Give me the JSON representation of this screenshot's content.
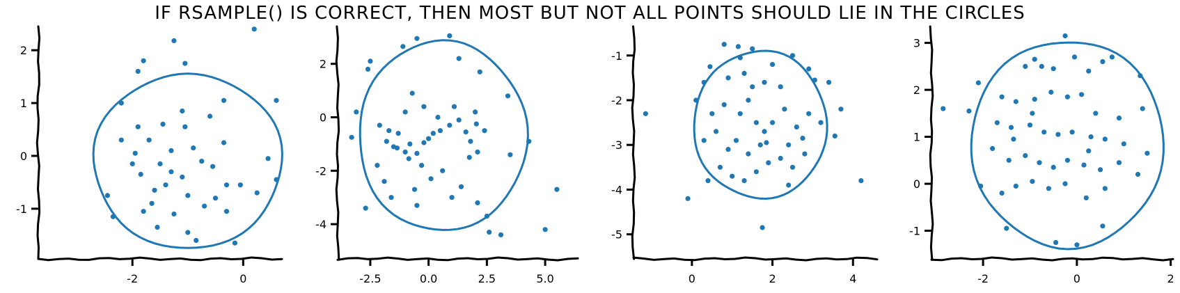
{
  "title": "IF RSAMPLE() IS CORRECT, THEN MOST BUT NOT ALL POINTS SHOULD LIE IN THE CIRCLES",
  "colors": {
    "points": "#1f77b4",
    "circle": "#1f77b4",
    "axes": "#000000"
  },
  "chart_data": [
    {
      "type": "scatter",
      "title": "",
      "xlabel": "",
      "ylabel": "",
      "xlim": [
        -3.7,
        0.7
      ],
      "ylim": [
        -1.95,
        2.45
      ],
      "xticks": [
        {
          "v": -2,
          "label": "-2"
        },
        {
          "v": 0,
          "label": "0"
        }
      ],
      "yticks": [
        {
          "v": -1,
          "label": "-1"
        },
        {
          "v": 0,
          "label": "0"
        },
        {
          "v": 1,
          "label": "1"
        },
        {
          "v": 2,
          "label": "2"
        }
      ],
      "circle": {
        "cx": -1.0,
        "cy": -0.1,
        "rx": 1.7,
        "ry": 1.65
      },
      "points": [
        [
          -1.25,
          2.18
        ],
        [
          -1.8,
          1.8
        ],
        [
          -1.9,
          1.6
        ],
        [
          -1.05,
          1.75
        ],
        [
          0.2,
          2.4
        ],
        [
          -2.45,
          -0.75
        ],
        [
          -2.35,
          -1.15
        ],
        [
          -1.55,
          -1.35
        ],
        [
          -1.0,
          -1.45
        ],
        [
          -0.85,
          -1.6
        ],
        [
          -0.15,
          -1.65
        ],
        [
          -2.2,
          1.0
        ],
        [
          -0.35,
          1.05
        ],
        [
          0.6,
          1.05
        ],
        [
          -1.1,
          0.85
        ],
        [
          -1.45,
          0.6
        ],
        [
          -1.05,
          0.55
        ],
        [
          -0.6,
          0.75
        ],
        [
          -0.35,
          0.25
        ],
        [
          0.45,
          -0.05
        ],
        [
          0.6,
          -0.45
        ],
        [
          0.25,
          -0.7
        ],
        [
          -1.9,
          0.55
        ],
        [
          -1.7,
          0.3
        ],
        [
          -1.95,
          0.05
        ],
        [
          -1.5,
          -0.15
        ],
        [
          -1.3,
          -0.3
        ],
        [
          -1.1,
          -0.4
        ],
        [
          -1.6,
          -0.65
        ],
        [
          -1.85,
          -0.35
        ],
        [
          -1.8,
          -1.05
        ],
        [
          -1.3,
          0.1
        ],
        [
          -0.9,
          0.15
        ],
        [
          -0.75,
          -0.1
        ],
        [
          -0.55,
          -0.2
        ],
        [
          -0.3,
          -0.55
        ],
        [
          -0.5,
          -0.8
        ],
        [
          -0.7,
          -0.95
        ],
        [
          -1.0,
          -0.75
        ],
        [
          -1.25,
          -1.1
        ],
        [
          -1.65,
          -0.9
        ],
        [
          -2.0,
          -0.15
        ],
        [
          -0.3,
          -1.05
        ],
        [
          -0.05,
          -0.55
        ],
        [
          -2.2,
          0.3
        ],
        [
          -1.4,
          -0.55
        ]
      ]
    },
    {
      "type": "scatter",
      "title": "",
      "xlabel": "",
      "ylabel": "",
      "xlim": [
        -3.9,
        6.4
      ],
      "ylim": [
        -5.3,
        3.4
      ],
      "xticks": [
        {
          "v": -2.5,
          "label": "-2.5"
        },
        {
          "v": 0,
          "label": "0.0"
        },
        {
          "v": 2.5,
          "label": "2.5"
        },
        {
          "v": 5,
          "label": "5.0"
        }
      ],
      "yticks": [
        {
          "v": -4,
          "label": "-4"
        },
        {
          "v": -2,
          "label": "-2"
        },
        {
          "v": 0,
          "label": "0"
        },
        {
          "v": 2,
          "label": "2"
        }
      ],
      "circle": {
        "cx": 0.6,
        "cy": -0.7,
        "rx": 3.6,
        "ry": 3.55
      },
      "points": [
        [
          -2.5,
          2.1
        ],
        [
          -2.6,
          1.8
        ],
        [
          -1.1,
          2.65
        ],
        [
          -0.5,
          2.95
        ],
        [
          0.9,
          3.05
        ],
        [
          1.3,
          2.2
        ],
        [
          2.2,
          1.7
        ],
        [
          3.4,
          0.8
        ],
        [
          -3.3,
          -0.75
        ],
        [
          -3.1,
          0.2
        ],
        [
          -2.1,
          -0.3
        ],
        [
          -1.8,
          -0.9
        ],
        [
          -1.5,
          -1.1
        ],
        [
          -1.3,
          -0.6
        ],
        [
          -1.0,
          -1.3
        ],
        [
          -0.8,
          -1.0
        ],
        [
          -0.5,
          -1.35
        ],
        [
          -0.2,
          -0.95
        ],
        [
          0.0,
          -0.8
        ],
        [
          0.2,
          -0.6
        ],
        [
          0.5,
          -0.5
        ],
        [
          0.9,
          -0.3
        ],
        [
          1.3,
          -0.1
        ],
        [
          1.6,
          -0.55
        ],
        [
          1.8,
          -0.9
        ],
        [
          2.1,
          -1.3
        ],
        [
          2.4,
          -0.5
        ],
        [
          2.0,
          0.2
        ],
        [
          1.1,
          0.4
        ],
        [
          -0.7,
          0.9
        ],
        [
          -0.2,
          0.4
        ],
        [
          -1.0,
          0.2
        ],
        [
          -1.7,
          -0.5
        ],
        [
          -2.2,
          -1.8
        ],
        [
          -1.9,
          -2.4
        ],
        [
          -2.7,
          -3.4
        ],
        [
          -1.6,
          -3.0
        ],
        [
          -0.6,
          -2.7
        ],
        [
          -0.5,
          -3.3
        ],
        [
          0.1,
          -2.3
        ],
        [
          0.6,
          -2.0
        ],
        [
          1.0,
          -3.0
        ],
        [
          1.4,
          -2.6
        ],
        [
          2.1,
          -3.2
        ],
        [
          2.5,
          -3.7
        ],
        [
          2.6,
          -4.3
        ],
        [
          3.1,
          -4.4
        ],
        [
          5.0,
          -4.2
        ],
        [
          5.5,
          -2.7
        ],
        [
          4.3,
          -0.9
        ],
        [
          3.5,
          -1.4
        ],
        [
          0.4,
          0.0
        ],
        [
          -1.35,
          -1.15
        ],
        [
          -0.3,
          -1.8
        ],
        [
          1.75,
          -1.5
        ],
        [
          2.05,
          -0.25
        ],
        [
          -0.85,
          -1.55
        ]
      ]
    },
    {
      "type": "scatter",
      "title": "",
      "xlabel": "",
      "ylabel": "",
      "xlim": [
        -1.45,
        4.6
      ],
      "ylim": [
        -5.55,
        -0.35
      ],
      "xticks": [
        {
          "v": 0,
          "label": "0"
        },
        {
          "v": 2,
          "label": "2"
        },
        {
          "v": 4,
          "label": "4"
        }
      ],
      "yticks": [
        {
          "v": -5,
          "label": "-5"
        },
        {
          "v": -4,
          "label": "-4"
        },
        {
          "v": -3,
          "label": "-3"
        },
        {
          "v": -2,
          "label": "-2"
        },
        {
          "v": -1,
          "label": "-1"
        }
      ],
      "circle": {
        "cx": 1.7,
        "cy": -2.55,
        "rx": 1.65,
        "ry": 1.65
      },
      "points": [
        [
          -1.15,
          -2.3
        ],
        [
          0.8,
          -0.75
        ],
        [
          1.15,
          -0.8
        ],
        [
          1.5,
          -0.85
        ],
        [
          2.0,
          -1.2
        ],
        [
          2.5,
          -1.0
        ],
        [
          2.9,
          -1.3
        ],
        [
          3.05,
          -1.55
        ],
        [
          3.4,
          -1.6
        ],
        [
          3.7,
          -2.2
        ],
        [
          3.55,
          -2.8
        ],
        [
          4.2,
          -3.8
        ],
        [
          0.3,
          -1.6
        ],
        [
          0.9,
          -1.5
        ],
        [
          1.3,
          -1.4
        ],
        [
          1.5,
          -1.7
        ],
        [
          1.8,
          -1.6
        ],
        [
          2.2,
          -1.7
        ],
        [
          0.1,
          -2.0
        ],
        [
          0.5,
          -2.3
        ],
        [
          0.8,
          -2.1
        ],
        [
          1.2,
          -2.3
        ],
        [
          1.4,
          -2.0
        ],
        [
          1.6,
          -2.5
        ],
        [
          1.8,
          -2.7
        ],
        [
          2.0,
          -2.5
        ],
        [
          2.3,
          -2.2
        ],
        [
          2.6,
          -2.6
        ],
        [
          2.9,
          -2.3
        ],
        [
          0.3,
          -2.9
        ],
        [
          0.6,
          -2.7
        ],
        [
          0.9,
          -3.1
        ],
        [
          1.1,
          -2.9
        ],
        [
          1.4,
          -3.2
        ],
        [
          1.7,
          -3.0
        ],
        [
          1.9,
          -3.4
        ],
        [
          2.2,
          -3.3
        ],
        [
          2.5,
          -3.5
        ],
        [
          2.8,
          -3.2
        ],
        [
          0.7,
          -3.5
        ],
        [
          1.0,
          -3.7
        ],
        [
          1.3,
          -3.8
        ],
        [
          1.6,
          -3.6
        ],
        [
          2.4,
          -3.9
        ],
        [
          0.4,
          -3.8
        ],
        [
          -0.1,
          -4.2
        ],
        [
          1.75,
          -4.85
        ],
        [
          1.85,
          -2.95
        ],
        [
          2.75,
          -2.85
        ],
        [
          3.2,
          -2.5
        ],
        [
          0.45,
          -1.25
        ],
        [
          1.2,
          -1.05
        ],
        [
          2.4,
          -3.0
        ]
      ]
    },
    {
      "type": "scatter",
      "title": "",
      "xlabel": "",
      "ylabel": "",
      "xlim": [
        -3.1,
        2.05
      ],
      "ylim": [
        -1.6,
        3.35
      ],
      "xticks": [
        {
          "v": -2,
          "label": "-2"
        },
        {
          "v": 0,
          "label": "0"
        },
        {
          "v": 2,
          "label": "2"
        }
      ],
      "yticks": [
        {
          "v": -1,
          "label": "-1"
        },
        {
          "v": 0,
          "label": "0"
        },
        {
          "v": 1,
          "label": "1"
        },
        {
          "v": 2,
          "label": "2"
        },
        {
          "v": 3,
          "label": "3"
        }
      ],
      "circle": {
        "cx": -0.2,
        "cy": 0.85,
        "rx": 2.05,
        "ry": 2.2
      },
      "points": [
        [
          -2.85,
          1.6
        ],
        [
          -0.25,
          3.15
        ],
        [
          -0.9,
          2.65
        ],
        [
          -1.1,
          2.5
        ],
        [
          -0.75,
          2.5
        ],
        [
          -0.5,
          2.45
        ],
        [
          -0.05,
          2.7
        ],
        [
          0.25,
          2.4
        ],
        [
          0.55,
          2.6
        ],
        [
          0.75,
          2.7
        ],
        [
          1.35,
          2.3
        ],
        [
          -2.1,
          2.15
        ],
        [
          -1.6,
          1.85
        ],
        [
          -1.3,
          1.75
        ],
        [
          -0.9,
          1.8
        ],
        [
          -0.55,
          1.95
        ],
        [
          -0.2,
          1.85
        ],
        [
          0.1,
          1.9
        ],
        [
          0.4,
          1.5
        ],
        [
          0.9,
          1.4
        ],
        [
          1.4,
          1.6
        ],
        [
          -2.3,
          1.55
        ],
        [
          -1.7,
          1.3
        ],
        [
          -1.4,
          1.2
        ],
        [
          -1.0,
          1.25
        ],
        [
          -0.7,
          1.1
        ],
        [
          -0.4,
          1.05
        ],
        [
          -0.1,
          1.1
        ],
        [
          0.3,
          1.0
        ],
        [
          0.6,
          0.95
        ],
        [
          1.0,
          0.85
        ],
        [
          1.5,
          0.65
        ],
        [
          -1.8,
          0.75
        ],
        [
          -1.45,
          0.5
        ],
        [
          -1.1,
          0.6
        ],
        [
          -0.8,
          0.45
        ],
        [
          -0.5,
          0.35
        ],
        [
          -0.2,
          0.5
        ],
        [
          0.15,
          0.4
        ],
        [
          0.5,
          0.3
        ],
        [
          0.9,
          0.45
        ],
        [
          1.3,
          0.2
        ],
        [
          -2.05,
          -0.05
        ],
        [
          -1.6,
          -0.2
        ],
        [
          -1.3,
          -0.05
        ],
        [
          -0.95,
          0.05
        ],
        [
          -0.6,
          -0.1
        ],
        [
          -0.25,
          0.0
        ],
        [
          0.2,
          -0.3
        ],
        [
          0.6,
          -0.1
        ],
        [
          -1.5,
          -0.95
        ],
        [
          -0.45,
          -1.25
        ],
        [
          0.0,
          -1.3
        ],
        [
          0.55,
          -0.9
        ],
        [
          -0.95,
          1.5
        ],
        [
          -1.35,
          0.95
        ],
        [
          0.25,
          0.7
        ]
      ]
    }
  ]
}
